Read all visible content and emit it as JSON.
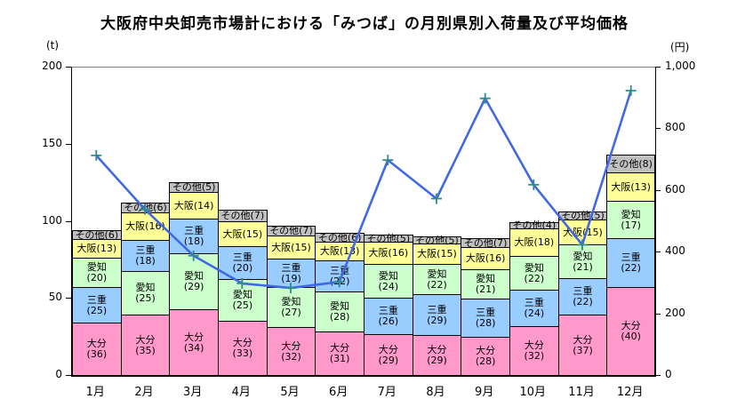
{
  "title": "大阪府中央卸売市場計における「みつば」の月別県別入荷量及び平均価格",
  "left_axis": {
    "unit": "(t)",
    "tick_labels": [
      "0",
      "50",
      "100",
      "150",
      "200"
    ],
    "tick_values": [
      0,
      50,
      100,
      150,
      200
    ],
    "max": 200
  },
  "right_axis": {
    "unit": "(円)",
    "tick_labels": [
      "0",
      "200",
      "400",
      "600",
      "800",
      "1,000"
    ],
    "tick_values": [
      0,
      200,
      400,
      600,
      800,
      1000
    ],
    "max": 1000
  },
  "colors": {
    "oita": "#FF99CC",
    "mie": "#99CCFF",
    "aichi": "#CCFFCC",
    "osaka": "#FFFF99",
    "other": "#C0C0C0",
    "line": "#4169E1",
    "marker": "#2E8B8B",
    "segment_border": "#000000"
  },
  "chart_data": {
    "type": "bar",
    "variant": "stacked-bar-with-line-overlay",
    "title": "大阪府中央卸売市場計における「みつば」の月別県別入荷量及び平均価格",
    "categories": [
      "1月",
      "2月",
      "3月",
      "4月",
      "5月",
      "6月",
      "7月",
      "8月",
      "9月",
      "10月",
      "11月",
      "12月"
    ],
    "ylabel_left": "(t)",
    "ylabel_right": "(円)",
    "ylim_left": [
      0,
      200
    ],
    "ylim_right": [
      0,
      1000
    ],
    "grid": false,
    "legend_position": "none",
    "series": [
      {
        "key": "oita",
        "name": "大分",
        "values": [
          36,
          35,
          34,
          33,
          32,
          31,
          29,
          29,
          28,
          32,
          37,
          40
        ],
        "unit": "%"
      },
      {
        "key": "mie",
        "name": "三重",
        "values": [
          25,
          18,
          18,
          20,
          19,
          22,
          26,
          29,
          28,
          24,
          22,
          22
        ],
        "unit": "%"
      },
      {
        "key": "aichi",
        "name": "愛知",
        "values": [
          20,
          25,
          29,
          25,
          27,
          28,
          24,
          22,
          21,
          22,
          21,
          17
        ],
        "unit": "%"
      },
      {
        "key": "osaka",
        "name": "大阪",
        "values": [
          13,
          16,
          14,
          15,
          15,
          13,
          16,
          15,
          16,
          18,
          15,
          13
        ],
        "unit": "%"
      },
      {
        "key": "other",
        "name": "その他",
        "values": [
          6,
          6,
          5,
          7,
          7,
          6,
          5,
          5,
          7,
          4,
          5,
          8
        ],
        "unit": "%"
      }
    ],
    "stack_orders_bottom_to_top": [
      [
        "oita",
        "mie",
        "aichi",
        "osaka",
        "other"
      ],
      [
        "oita",
        "aichi",
        "mie",
        "osaka",
        "other"
      ],
      [
        "oita",
        "aichi",
        "mie",
        "osaka",
        "other"
      ],
      [
        "oita",
        "aichi",
        "mie",
        "osaka",
        "other"
      ],
      [
        "oita",
        "aichi",
        "mie",
        "osaka",
        "other"
      ],
      [
        "oita",
        "aichi",
        "mie",
        "osaka",
        "other"
      ],
      [
        "oita",
        "mie",
        "aichi",
        "osaka",
        "other"
      ],
      [
        "oita",
        "mie",
        "aichi",
        "osaka",
        "other"
      ],
      [
        "oita",
        "mie",
        "aichi",
        "osaka",
        "other"
      ],
      [
        "oita",
        "mie",
        "aichi",
        "osaka",
        "other"
      ],
      [
        "oita",
        "mie",
        "aichi",
        "osaka",
        "other"
      ],
      [
        "oita",
        "mie",
        "aichi",
        "osaka",
        "other"
      ]
    ],
    "bar_totals_t_estimated": [
      94,
      112,
      125,
      107,
      97,
      92,
      91,
      90,
      89,
      99,
      106,
      143
    ],
    "line": {
      "name": "平均価格",
      "unit": "円",
      "axis": "right",
      "marker": "plus",
      "values": [
        715,
        540,
        390,
        300,
        285,
        305,
        700,
        575,
        900,
        620,
        425,
        925
      ]
    }
  }
}
